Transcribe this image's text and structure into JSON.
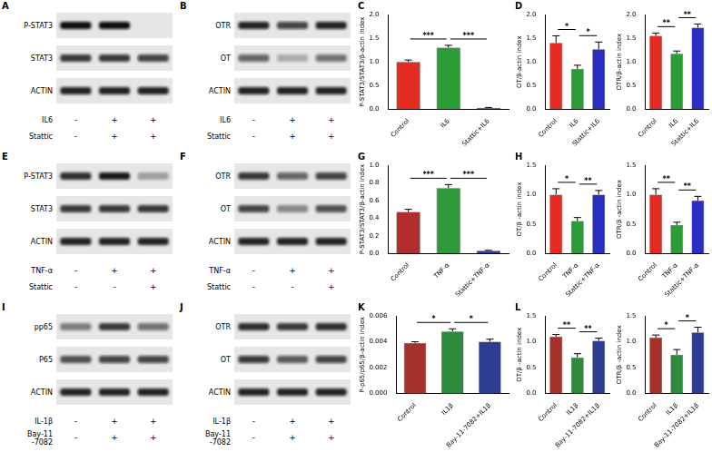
{
  "blots": [
    {
      "panel": "A",
      "rows": [
        {
          "label": "P-STAT3",
          "bands": [
            1,
            1,
            0
          ]
        },
        {
          "label": "STAT3",
          "bands": [
            0.8,
            0.8,
            0.75
          ]
        },
        {
          "label": "ACTIN",
          "bands": [
            0.9,
            0.9,
            0.9
          ]
        }
      ],
      "treatments": [
        {
          "label": "IL6",
          "signs": [
            "-",
            "+",
            "+"
          ]
        },
        {
          "label": "Stattic",
          "signs": [
            "-",
            "+",
            "+"
          ]
        }
      ]
    },
    {
      "panel": "B",
      "rows": [
        {
          "label": "OTR",
          "bands": [
            0.9,
            0.75,
            0.9
          ]
        },
        {
          "label": "OT",
          "bands": [
            0.6,
            0.25,
            0.55
          ]
        },
        {
          "label": "ACTIN",
          "bands": [
            0.9,
            0.9,
            0.9
          ]
        }
      ],
      "treatments": [
        {
          "label": "IL6",
          "signs": [
            "-",
            "+",
            "+"
          ]
        },
        {
          "label": "Stattic",
          "signs": [
            "-",
            "+",
            "+"
          ]
        }
      ]
    },
    {
      "panel": "E",
      "rows": [
        {
          "label": "P-STAT3",
          "bands": [
            0.85,
            0.95,
            0.35
          ]
        },
        {
          "label": "STAT3",
          "bands": [
            0.8,
            0.8,
            0.8
          ]
        },
        {
          "label": "ACTIN",
          "bands": [
            0.9,
            0.9,
            0.9
          ]
        }
      ],
      "treatments": [
        {
          "label": "TNF-α",
          "signs": [
            "-",
            "+",
            "+"
          ]
        },
        {
          "label": "Stattic",
          "signs": [
            "-",
            "-",
            "+"
          ]
        }
      ]
    },
    {
      "panel": "F",
      "rows": [
        {
          "label": "OTR",
          "bands": [
            0.8,
            0.6,
            0.75
          ]
        },
        {
          "label": "OT",
          "bands": [
            0.75,
            0.45,
            0.7
          ]
        },
        {
          "label": "ACTIN",
          "bands": [
            0.9,
            0.9,
            0.9
          ]
        }
      ],
      "treatments": [
        {
          "label": "TNF-α",
          "signs": [
            "-",
            "+",
            "+"
          ]
        },
        {
          "label": "Stattic",
          "signs": [
            "-",
            "-",
            "+"
          ]
        }
      ]
    },
    {
      "panel": "I",
      "rows": [
        {
          "label": "pp65",
          "bands": [
            0.5,
            0.8,
            0.55
          ]
        },
        {
          "label": "P65",
          "bands": [
            0.7,
            0.75,
            0.75
          ]
        },
        {
          "label": "ACTIN",
          "bands": [
            0.9,
            0.9,
            0.9
          ]
        }
      ],
      "treatments": [
        {
          "label": "IL-1β",
          "signs": [
            "-",
            "+",
            "+"
          ]
        },
        {
          "label": "Bay-11 -7082",
          "signs": [
            "-",
            "+",
            "+"
          ]
        }
      ]
    },
    {
      "panel": "J",
      "rows": [
        {
          "label": "OTR",
          "bands": [
            0.85,
            0.8,
            0.85
          ]
        },
        {
          "label": "OT",
          "bands": [
            0.8,
            0.65,
            0.75
          ]
        },
        {
          "label": "ACTIN",
          "bands": [
            0.9,
            0.9,
            0.9
          ]
        }
      ],
      "treatments": [
        {
          "label": "IL-1β",
          "signs": [
            "-",
            "+",
            "+"
          ]
        },
        {
          "label": "Bay-11 -7082",
          "signs": [
            "-",
            "+",
            "+"
          ]
        }
      ]
    }
  ],
  "chart_data": [
    {
      "panel": "C",
      "type": "bar",
      "categories": [
        "Control",
        "IL6",
        "Stattic+IL6"
      ],
      "values": [
        1.0,
        1.3,
        0.03
      ],
      "errors": [
        0.04,
        0.05,
        0.01
      ],
      "colors": [
        "#e32b22",
        "#2a9d36",
        "#2a2fc2"
      ],
      "y_label": "P-STAT3/STAT3/β-actin index",
      "ylim": [
        0,
        2
      ],
      "yticks": [
        {
          "value": 0,
          "label": "0.0"
        },
        0.5,
        {
          "value": 1,
          "label": "1.0"
        },
        1.5,
        {
          "value": 2,
          "label": "2.0"
        }
      ],
      "grid": false,
      "annotations": [
        {
          "from": 0,
          "to": 1,
          "label": "***"
        },
        {
          "from": 1,
          "to": 2,
          "label": "***"
        }
      ]
    },
    {
      "panel": "D",
      "type": "bar",
      "categories": [
        "Control",
        "IL6",
        "Stattic+IL6"
      ],
      "values": [
        1.4,
        0.85,
        1.27
      ],
      "errors": [
        0.15,
        0.08,
        0.15
      ],
      "colors": [
        "#e32b22",
        "#2a9d36",
        "#2a2fc2"
      ],
      "y_label": "OT/β-actin index",
      "ylim": [
        0,
        2
      ],
      "yticks": [
        {
          "value": 0,
          "label": "0.0"
        },
        0.5,
        {
          "value": 1,
          "label": "1.0"
        },
        1.5,
        {
          "value": 2,
          "label": "2.0"
        }
      ],
      "grid": false,
      "annotations": [
        {
          "from": 0,
          "to": 1,
          "label": "*"
        },
        {
          "from": 1,
          "to": 2,
          "label": "*"
        }
      ]
    },
    {
      "type": "bar",
      "categories": [
        "Control",
        "IL6",
        "Stattic+IL6"
      ],
      "values": [
        1.55,
        1.17,
        1.72
      ],
      "errors": [
        0.06,
        0.06,
        0.08
      ],
      "colors": [
        "#e32b22",
        "#2a9d36",
        "#2a2fc2"
      ],
      "y_label": "OTR/β-actin index",
      "ylim": [
        0,
        2
      ],
      "yticks": [
        {
          "value": 0,
          "label": "0.0"
        },
        0.5,
        {
          "value": 1,
          "label": "1.0"
        },
        1.5,
        {
          "value": 2,
          "label": "2.0"
        }
      ],
      "grid": false,
      "annotations": [
        {
          "from": 0,
          "to": 1,
          "label": "**"
        },
        {
          "from": 1,
          "to": 2,
          "label": "**"
        }
      ]
    },
    {
      "panel": "G",
      "type": "bar",
      "categories": [
        "Control",
        "TNF-α",
        "Stattic+TNF-α"
      ],
      "values": [
        0.47,
        0.74,
        0.03
      ],
      "errors": [
        0.03,
        0.04,
        0.005
      ],
      "colors": [
        "#b22d2d",
        "#2e9a3c",
        "#2a3ca8"
      ],
      "y_label": "P-STAT3/STAT3/β-actin index",
      "ylim": [
        0,
        1
      ],
      "yticks": [
        {
          "value": 0,
          "label": "0.0"
        },
        0.2,
        0.4,
        0.6,
        0.8,
        {
          "value": 1,
          "label": "1.0"
        }
      ],
      "grid": false,
      "annotations": [
        {
          "from": 0,
          "to": 1,
          "label": "***"
        },
        {
          "from": 1,
          "to": 2,
          "label": "***"
        }
      ]
    },
    {
      "panel": "H",
      "type": "bar",
      "categories": [
        "Control",
        "TNF-α",
        "Stattic+TNF-α"
      ],
      "values": [
        1.0,
        0.55,
        1.0
      ],
      "errors": [
        0.1,
        0.06,
        0.07
      ],
      "colors": [
        "#e32b22",
        "#2a9d36",
        "#2a2fc2"
      ],
      "y_label": "OT/β -actin index",
      "ylim": [
        0,
        1.5
      ],
      "yticks": [
        {
          "value": 0,
          "label": "0.0"
        },
        0.5,
        {
          "value": 1,
          "label": "1.0"
        },
        1.5
      ],
      "grid": false,
      "annotations": [
        {
          "from": 0,
          "to": 1,
          "label": "*"
        },
        {
          "from": 1,
          "to": 2,
          "label": "**"
        }
      ]
    },
    {
      "type": "bar",
      "categories": [
        "Control",
        "TNF-α",
        "Stattic+TNF-α"
      ],
      "values": [
        1.0,
        0.48,
        0.9
      ],
      "errors": [
        0.1,
        0.05,
        0.07
      ],
      "colors": [
        "#e32b22",
        "#2a9d36",
        "#2a2fc2"
      ],
      "y_label": "OTR/β -actin index",
      "ylim": [
        0,
        1.5
      ],
      "yticks": [
        {
          "value": 0,
          "label": "0.0"
        },
        0.5,
        {
          "value": 1,
          "label": "1.0"
        },
        1.5
      ],
      "grid": false,
      "annotations": [
        {
          "from": 0,
          "to": 1,
          "label": "**"
        },
        {
          "from": 1,
          "to": 2,
          "label": "**"
        }
      ]
    },
    {
      "panel": "K",
      "type": "bar",
      "categories": [
        "Control",
        "IL1β",
        "Bay-11-7082+IL1β"
      ],
      "values": [
        0.0039,
        0.0048,
        0.004
      ],
      "errors": [
        0.0001,
        0.0002,
        0.0002
      ],
      "colors": [
        "#a5332c",
        "#2e8b3e",
        "#2e3d91"
      ],
      "y_label": "P-p65/p65/β-actin index",
      "ylim": [
        0,
        0.006
      ],
      "yticks": [
        {
          "value": 0,
          "label": "0.000"
        },
        {
          "value": 0.002,
          "label": "0.002"
        },
        {
          "value": 0.004,
          "label": "0.004"
        },
        {
          "value": 0.006,
          "label": "0.006"
        }
      ],
      "grid": false,
      "annotations": [
        {
          "from": 0,
          "to": 1,
          "label": "*"
        },
        {
          "from": 1,
          "to": 2,
          "label": "*"
        }
      ]
    },
    {
      "panel": "L",
      "type": "bar",
      "categories": [
        "Control",
        "IL1β",
        "Bay-11-7082+IL1β"
      ],
      "values": [
        1.1,
        0.7,
        1.02
      ],
      "errors": [
        0.04,
        0.07,
        0.05
      ],
      "colors": [
        "#a5332c",
        "#2e8b3e",
        "#2e3d91"
      ],
      "y_label": "OT/β -actin index",
      "ylim": [
        0,
        1.5
      ],
      "yticks": [
        {
          "value": 0,
          "label": "0.0"
        },
        0.5,
        {
          "value": 1,
          "label": "1.0"
        },
        1.5
      ],
      "grid": false,
      "annotations": [
        {
          "from": 0,
          "to": 1,
          "label": "**"
        },
        {
          "from": 1,
          "to": 2,
          "label": "**"
        }
      ]
    },
    {
      "type": "bar",
      "categories": [
        "Control",
        "IL1β",
        "Bay-11-7082+IL1β"
      ],
      "values": [
        1.08,
        0.75,
        1.18
      ],
      "errors": [
        0.05,
        0.1,
        0.1
      ],
      "colors": [
        "#a5332c",
        "#2e8b3e",
        "#2e3d91"
      ],
      "y_label": "OTR/β -actin index",
      "ylim": [
        0,
        1.5
      ],
      "yticks": [
        {
          "value": 0,
          "label": "0.0"
        },
        0.5,
        {
          "value": 1,
          "label": "1.0"
        },
        1.5
      ],
      "grid": false,
      "annotations": [
        {
          "from": 0,
          "to": 1,
          "label": "*"
        },
        {
          "from": 1,
          "to": 2,
          "label": "*"
        }
      ]
    }
  ]
}
